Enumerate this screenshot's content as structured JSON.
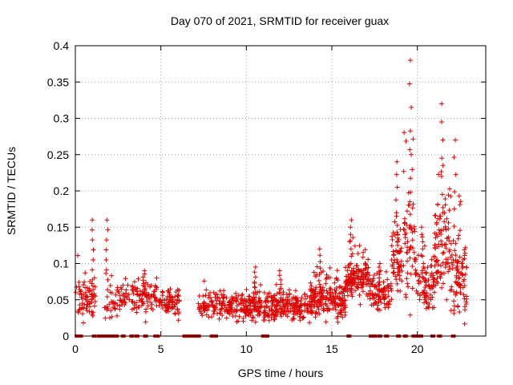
{
  "chart_data": {
    "type": "scatter",
    "title": "Day 070 of 2021, SRMTID for receiver guax",
    "xlabel": "GPS time / hours",
    "ylabel": "SRMTID / TECUs",
    "xlim": [
      0,
      24
    ],
    "ylim": [
      0,
      0.4
    ],
    "xticks": [
      0,
      5,
      10,
      15,
      20
    ],
    "xtick_labels": [
      "0",
      "5",
      "10",
      "15",
      "20"
    ],
    "yticks": [
      0,
      0.05,
      0.1,
      0.15,
      0.2,
      0.25,
      0.3,
      0.35,
      0.4
    ],
    "ytick_labels": [
      "0",
      "0.05",
      "0.1",
      "0.15",
      "0.2",
      "0.25",
      "0.3",
      "0.35",
      "0.4"
    ],
    "grid": true,
    "marker": "+",
    "color": "#e00000",
    "clusters": [
      {
        "x_start": 0.0,
        "x_end": 1.2,
        "y_mean": 0.05,
        "spread": 0.02,
        "count": 70,
        "peak": 0.16,
        "peak_x": 1.0
      },
      {
        "x_start": 1.7,
        "x_end": 3.2,
        "y_mean": 0.05,
        "spread": 0.02,
        "count": 60,
        "peak": 0.16,
        "peak_x": 1.85
      },
      {
        "x_start": 3.3,
        "x_end": 4.8,
        "y_mean": 0.055,
        "spread": 0.02,
        "count": 80,
        "peak": 0.09,
        "peak_x": 4.0
      },
      {
        "x_start": 4.9,
        "x_end": 6.1,
        "y_mean": 0.045,
        "spread": 0.015,
        "count": 70,
        "peak": 0.065,
        "peak_x": 5.5
      },
      {
        "x_start": 7.2,
        "x_end": 10.9,
        "y_mean": 0.04,
        "spread": 0.015,
        "count": 260,
        "peak": 0.095,
        "peak_x": 10.5
      },
      {
        "x_start": 11.0,
        "x_end": 13.7,
        "y_mean": 0.04,
        "spread": 0.015,
        "count": 200,
        "peak": 0.09,
        "peak_x": 12.0
      },
      {
        "x_start": 13.7,
        "x_end": 15.8,
        "y_mean": 0.05,
        "spread": 0.02,
        "count": 200,
        "peak": 0.12,
        "peak_x": 14.3
      },
      {
        "x_start": 15.8,
        "x_end": 17.2,
        "y_mean": 0.08,
        "spread": 0.02,
        "count": 140,
        "peak": 0.16,
        "peak_x": 16.1
      },
      {
        "x_start": 17.2,
        "x_end": 18.5,
        "y_mean": 0.06,
        "spread": 0.02,
        "count": 90,
        "peak": 0.1,
        "peak_x": 17.8
      },
      {
        "x_start": 18.5,
        "x_end": 19.1,
        "y_mean": 0.1,
        "spread": 0.04,
        "count": 60,
        "peak": 0.24,
        "peak_x": 18.8
      },
      {
        "x_start": 19.2,
        "x_end": 19.9,
        "y_mean": 0.12,
        "spread": 0.06,
        "count": 60,
        "peak": 0.38,
        "peak_x": 19.6
      },
      {
        "x_start": 19.9,
        "x_end": 21.0,
        "y_mean": 0.07,
        "spread": 0.03,
        "count": 80,
        "peak": 0.15,
        "peak_x": 20.3
      },
      {
        "x_start": 21.0,
        "x_end": 21.9,
        "y_mean": 0.12,
        "spread": 0.06,
        "count": 90,
        "peak": 0.32,
        "peak_x": 21.45
      },
      {
        "x_start": 21.9,
        "x_end": 22.9,
        "y_mean": 0.08,
        "spread": 0.04,
        "count": 90,
        "peak": 0.27,
        "peak_x": 22.2
      }
    ],
    "zero_points_x": [
      0.1,
      0.3,
      1.1,
      1.4,
      1.6,
      1.8,
      2.0,
      2.2,
      2.4,
      2.8,
      3.3,
      3.6,
      4.1,
      4.7,
      4.8,
      6.4,
      6.6,
      6.8,
      7.0,
      7.2,
      8.0,
      8.2,
      11.0,
      11.2,
      16.0,
      17.3,
      17.5,
      17.8,
      18.2,
      18.9,
      19.3,
      19.8,
      19.9,
      20.0,
      20.2,
      20.9,
      21.3,
      22.1
    ]
  }
}
